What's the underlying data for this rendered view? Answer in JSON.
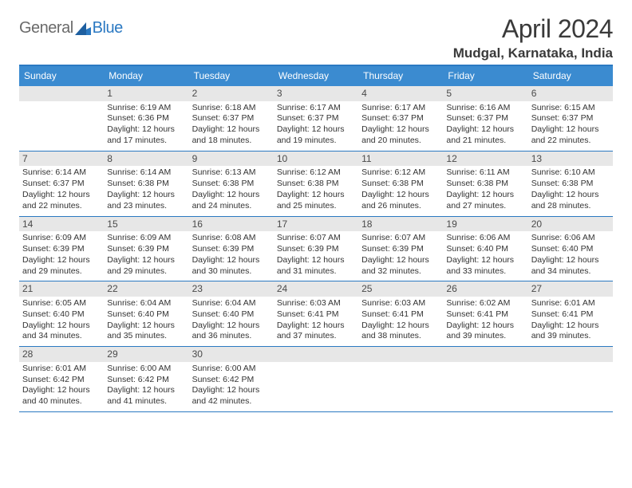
{
  "logo": {
    "text_general": "General",
    "text_blue": "Blue"
  },
  "title": "April 2024",
  "location": "Mudgal, Karnataka, India",
  "colors": {
    "header_bg": "#3b8bd0",
    "header_border": "#2b79c2",
    "daynum_bg": "#e7e7e7",
    "text": "#333333",
    "logo_gray": "#6a6a6a",
    "logo_blue": "#2b79c2"
  },
  "columns": [
    "Sunday",
    "Monday",
    "Tuesday",
    "Wednesday",
    "Thursday",
    "Friday",
    "Saturday"
  ],
  "weeks": [
    [
      {
        "day": "",
        "sunrise": "",
        "sunset": "",
        "daylight1": "",
        "daylight2": ""
      },
      {
        "day": "1",
        "sunrise": "Sunrise: 6:19 AM",
        "sunset": "Sunset: 6:36 PM",
        "daylight1": "Daylight: 12 hours",
        "daylight2": "and 17 minutes."
      },
      {
        "day": "2",
        "sunrise": "Sunrise: 6:18 AM",
        "sunset": "Sunset: 6:37 PM",
        "daylight1": "Daylight: 12 hours",
        "daylight2": "and 18 minutes."
      },
      {
        "day": "3",
        "sunrise": "Sunrise: 6:17 AM",
        "sunset": "Sunset: 6:37 PM",
        "daylight1": "Daylight: 12 hours",
        "daylight2": "and 19 minutes."
      },
      {
        "day": "4",
        "sunrise": "Sunrise: 6:17 AM",
        "sunset": "Sunset: 6:37 PM",
        "daylight1": "Daylight: 12 hours",
        "daylight2": "and 20 minutes."
      },
      {
        "day": "5",
        "sunrise": "Sunrise: 6:16 AM",
        "sunset": "Sunset: 6:37 PM",
        "daylight1": "Daylight: 12 hours",
        "daylight2": "and 21 minutes."
      },
      {
        "day": "6",
        "sunrise": "Sunrise: 6:15 AM",
        "sunset": "Sunset: 6:37 PM",
        "daylight1": "Daylight: 12 hours",
        "daylight2": "and 22 minutes."
      }
    ],
    [
      {
        "day": "7",
        "sunrise": "Sunrise: 6:14 AM",
        "sunset": "Sunset: 6:37 PM",
        "daylight1": "Daylight: 12 hours",
        "daylight2": "and 22 minutes."
      },
      {
        "day": "8",
        "sunrise": "Sunrise: 6:14 AM",
        "sunset": "Sunset: 6:38 PM",
        "daylight1": "Daylight: 12 hours",
        "daylight2": "and 23 minutes."
      },
      {
        "day": "9",
        "sunrise": "Sunrise: 6:13 AM",
        "sunset": "Sunset: 6:38 PM",
        "daylight1": "Daylight: 12 hours",
        "daylight2": "and 24 minutes."
      },
      {
        "day": "10",
        "sunrise": "Sunrise: 6:12 AM",
        "sunset": "Sunset: 6:38 PM",
        "daylight1": "Daylight: 12 hours",
        "daylight2": "and 25 minutes."
      },
      {
        "day": "11",
        "sunrise": "Sunrise: 6:12 AM",
        "sunset": "Sunset: 6:38 PM",
        "daylight1": "Daylight: 12 hours",
        "daylight2": "and 26 minutes."
      },
      {
        "day": "12",
        "sunrise": "Sunrise: 6:11 AM",
        "sunset": "Sunset: 6:38 PM",
        "daylight1": "Daylight: 12 hours",
        "daylight2": "and 27 minutes."
      },
      {
        "day": "13",
        "sunrise": "Sunrise: 6:10 AM",
        "sunset": "Sunset: 6:38 PM",
        "daylight1": "Daylight: 12 hours",
        "daylight2": "and 28 minutes."
      }
    ],
    [
      {
        "day": "14",
        "sunrise": "Sunrise: 6:09 AM",
        "sunset": "Sunset: 6:39 PM",
        "daylight1": "Daylight: 12 hours",
        "daylight2": "and 29 minutes."
      },
      {
        "day": "15",
        "sunrise": "Sunrise: 6:09 AM",
        "sunset": "Sunset: 6:39 PM",
        "daylight1": "Daylight: 12 hours",
        "daylight2": "and 29 minutes."
      },
      {
        "day": "16",
        "sunrise": "Sunrise: 6:08 AM",
        "sunset": "Sunset: 6:39 PM",
        "daylight1": "Daylight: 12 hours",
        "daylight2": "and 30 minutes."
      },
      {
        "day": "17",
        "sunrise": "Sunrise: 6:07 AM",
        "sunset": "Sunset: 6:39 PM",
        "daylight1": "Daylight: 12 hours",
        "daylight2": "and 31 minutes."
      },
      {
        "day": "18",
        "sunrise": "Sunrise: 6:07 AM",
        "sunset": "Sunset: 6:39 PM",
        "daylight1": "Daylight: 12 hours",
        "daylight2": "and 32 minutes."
      },
      {
        "day": "19",
        "sunrise": "Sunrise: 6:06 AM",
        "sunset": "Sunset: 6:40 PM",
        "daylight1": "Daylight: 12 hours",
        "daylight2": "and 33 minutes."
      },
      {
        "day": "20",
        "sunrise": "Sunrise: 6:06 AM",
        "sunset": "Sunset: 6:40 PM",
        "daylight1": "Daylight: 12 hours",
        "daylight2": "and 34 minutes."
      }
    ],
    [
      {
        "day": "21",
        "sunrise": "Sunrise: 6:05 AM",
        "sunset": "Sunset: 6:40 PM",
        "daylight1": "Daylight: 12 hours",
        "daylight2": "and 34 minutes."
      },
      {
        "day": "22",
        "sunrise": "Sunrise: 6:04 AM",
        "sunset": "Sunset: 6:40 PM",
        "daylight1": "Daylight: 12 hours",
        "daylight2": "and 35 minutes."
      },
      {
        "day": "23",
        "sunrise": "Sunrise: 6:04 AM",
        "sunset": "Sunset: 6:40 PM",
        "daylight1": "Daylight: 12 hours",
        "daylight2": "and 36 minutes."
      },
      {
        "day": "24",
        "sunrise": "Sunrise: 6:03 AM",
        "sunset": "Sunset: 6:41 PM",
        "daylight1": "Daylight: 12 hours",
        "daylight2": "and 37 minutes."
      },
      {
        "day": "25",
        "sunrise": "Sunrise: 6:03 AM",
        "sunset": "Sunset: 6:41 PM",
        "daylight1": "Daylight: 12 hours",
        "daylight2": "and 38 minutes."
      },
      {
        "day": "26",
        "sunrise": "Sunrise: 6:02 AM",
        "sunset": "Sunset: 6:41 PM",
        "daylight1": "Daylight: 12 hours",
        "daylight2": "and 39 minutes."
      },
      {
        "day": "27",
        "sunrise": "Sunrise: 6:01 AM",
        "sunset": "Sunset: 6:41 PM",
        "daylight1": "Daylight: 12 hours",
        "daylight2": "and 39 minutes."
      }
    ],
    [
      {
        "day": "28",
        "sunrise": "Sunrise: 6:01 AM",
        "sunset": "Sunset: 6:42 PM",
        "daylight1": "Daylight: 12 hours",
        "daylight2": "and 40 minutes."
      },
      {
        "day": "29",
        "sunrise": "Sunrise: 6:00 AM",
        "sunset": "Sunset: 6:42 PM",
        "daylight1": "Daylight: 12 hours",
        "daylight2": "and 41 minutes."
      },
      {
        "day": "30",
        "sunrise": "Sunrise: 6:00 AM",
        "sunset": "Sunset: 6:42 PM",
        "daylight1": "Daylight: 12 hours",
        "daylight2": "and 42 minutes."
      },
      {
        "day": "",
        "sunrise": "",
        "sunset": "",
        "daylight1": "",
        "daylight2": ""
      },
      {
        "day": "",
        "sunrise": "",
        "sunset": "",
        "daylight1": "",
        "daylight2": ""
      },
      {
        "day": "",
        "sunrise": "",
        "sunset": "",
        "daylight1": "",
        "daylight2": ""
      },
      {
        "day": "",
        "sunrise": "",
        "sunset": "",
        "daylight1": "",
        "daylight2": ""
      }
    ]
  ]
}
